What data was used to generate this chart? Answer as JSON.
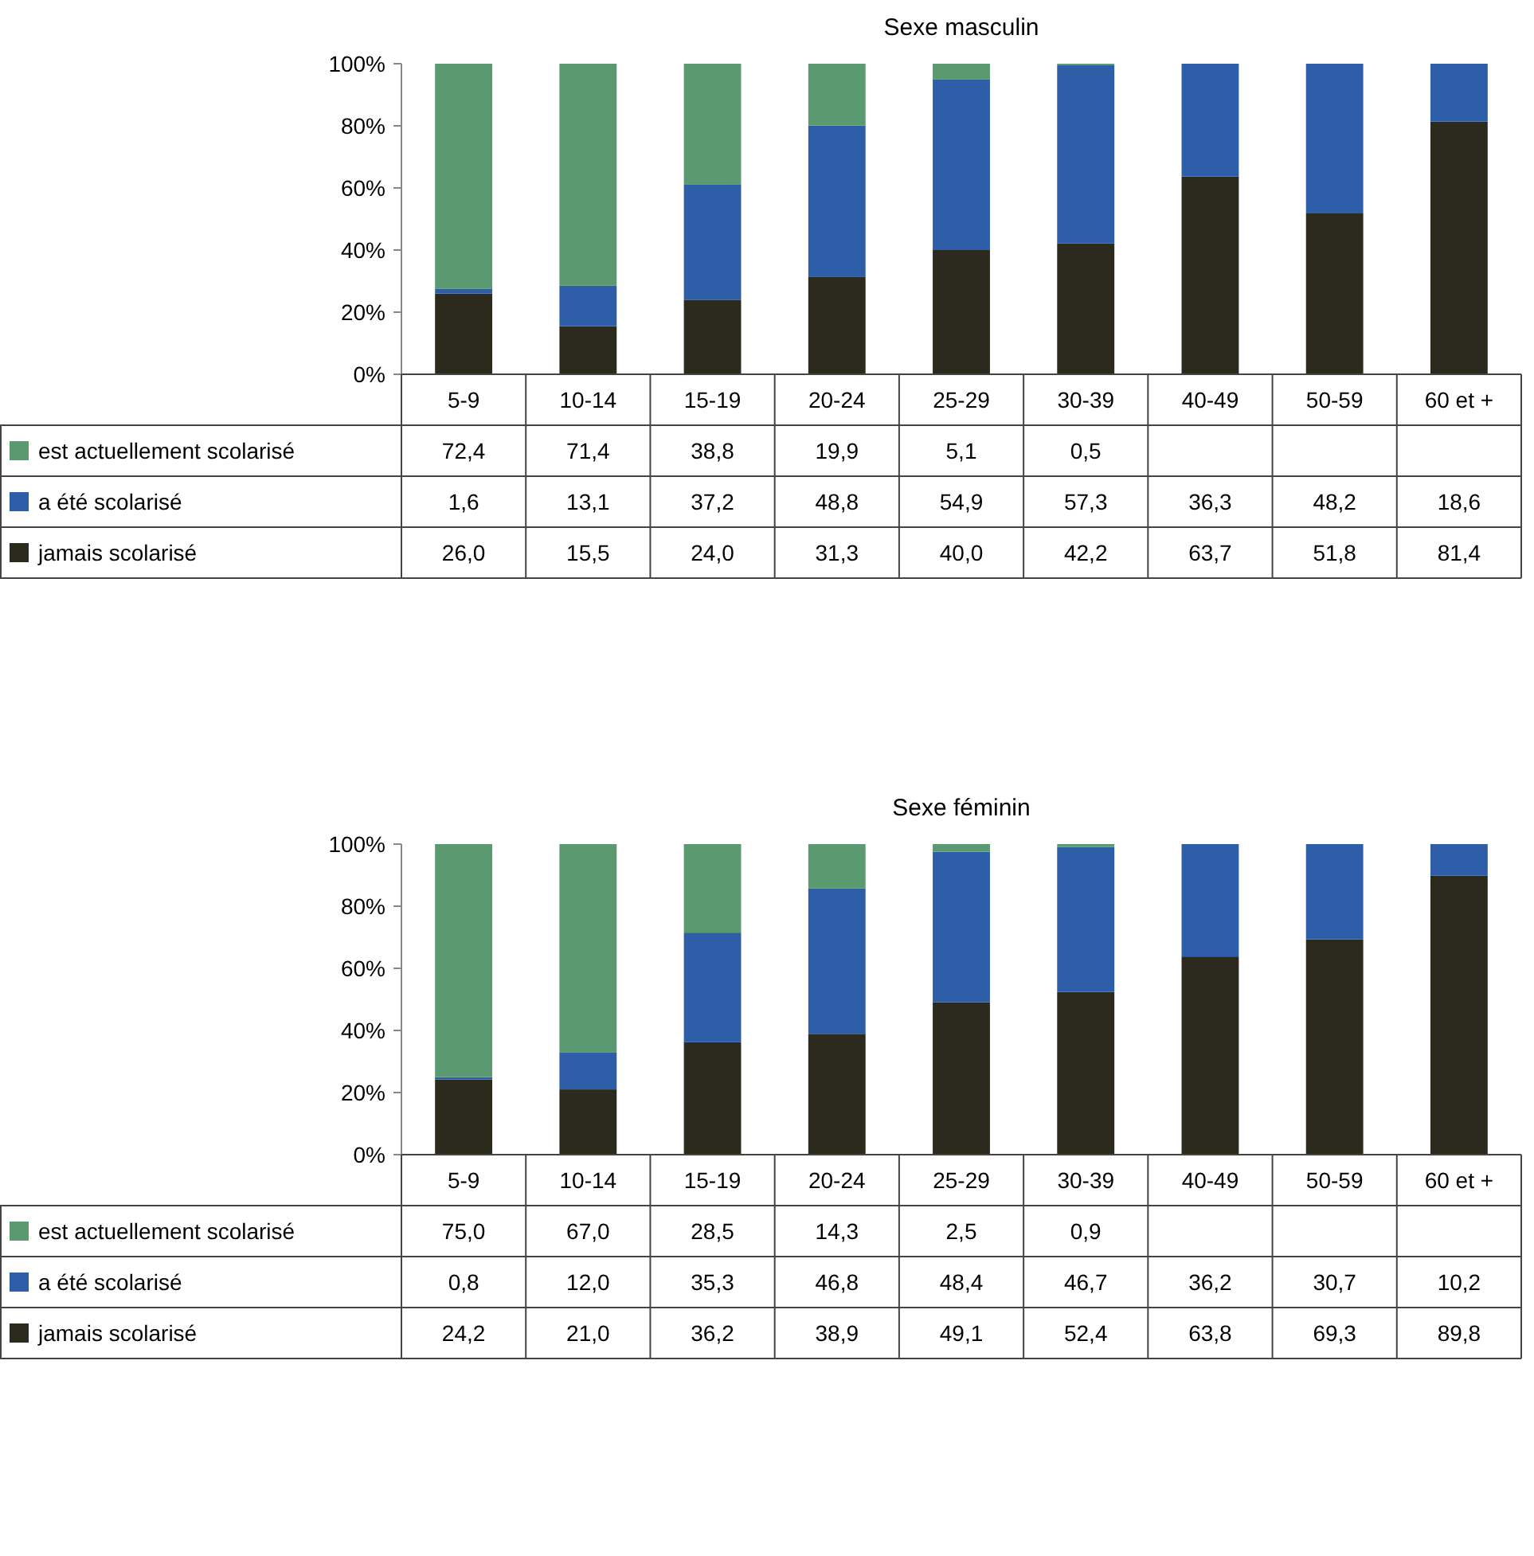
{
  "chart_data": [
    {
      "type": "bar",
      "stacked": true,
      "title": "Sexe masculin",
      "categories": [
        "5-9",
        "10-14",
        "15-19",
        "20-24",
        "25-29",
        "30-39",
        "40-49",
        "50-59",
        "60 et +"
      ],
      "ylim": [
        0,
        100
      ],
      "yticks": [
        {
          "value": 0,
          "label": "0%"
        },
        {
          "value": 20,
          "label": "20%"
        },
        {
          "value": 40,
          "label": "40%"
        },
        {
          "value": 60,
          "label": "60%"
        },
        {
          "value": 80,
          "label": "80%"
        },
        {
          "value": 100,
          "label": "100%"
        }
      ],
      "legend": "bottom",
      "series": [
        {
          "name": "jamais scolarisé",
          "color": "#2b2a1c",
          "values": [
            26.0,
            15.5,
            24.0,
            31.3,
            40.0,
            42.2,
            63.7,
            51.8,
            81.4
          ],
          "value_labels": [
            "26,0",
            "15,5",
            "24,0",
            "31,3",
            "40,0",
            "42,2",
            "63,7",
            "51,8",
            "81,4"
          ]
        },
        {
          "name": "a été scolarisé",
          "color": "#2f5ea8",
          "values": [
            1.6,
            13.1,
            37.2,
            48.8,
            54.9,
            57.3,
            36.3,
            48.2,
            18.6
          ],
          "value_labels": [
            "1,6",
            "13,1",
            "37,2",
            "48,8",
            "54,9",
            "57,3",
            "36,3",
            "48,2",
            "18,6"
          ]
        },
        {
          "name": "est actuellement scolarisé",
          "color": "#5b9a70",
          "values": [
            72.4,
            71.4,
            38.8,
            19.9,
            5.1,
            0.5,
            null,
            null,
            null
          ],
          "value_labels": [
            "72,4",
            "71,4",
            "38,8",
            "19,9",
            "5,1",
            "0,5",
            null,
            null,
            null
          ]
        }
      ]
    },
    {
      "type": "bar",
      "stacked": true,
      "title": "Sexe féminin",
      "categories": [
        "5-9",
        "10-14",
        "15-19",
        "20-24",
        "25-29",
        "30-39",
        "40-49",
        "50-59",
        "60 et +"
      ],
      "ylim": [
        0,
        100
      ],
      "yticks": [
        {
          "value": 0,
          "label": "0%"
        },
        {
          "value": 20,
          "label": "20%"
        },
        {
          "value": 40,
          "label": "40%"
        },
        {
          "value": 60,
          "label": "60%"
        },
        {
          "value": 80,
          "label": "80%"
        },
        {
          "value": 100,
          "label": "100%"
        }
      ],
      "legend": "bottom",
      "series": [
        {
          "name": "jamais scolarisé",
          "color": "#2b2a1c",
          "values": [
            24.2,
            21.0,
            36.2,
            38.9,
            49.1,
            52.4,
            63.8,
            69.3,
            89.8
          ],
          "value_labels": [
            "24,2",
            "21,0",
            "36,2",
            "38,9",
            "49,1",
            "52,4",
            "63,8",
            "69,3",
            "89,8"
          ]
        },
        {
          "name": "a été scolarisé",
          "color": "#2f5ea8",
          "values": [
            0.8,
            12.0,
            35.3,
            46.8,
            48.4,
            46.7,
            36.2,
            30.7,
            10.2
          ],
          "value_labels": [
            "0,8",
            "12,0",
            "35,3",
            "46,8",
            "48,4",
            "46,7",
            "36,2",
            "30,7",
            "10,2"
          ]
        },
        {
          "name": "est actuellement scolarisé",
          "color": "#5b9a70",
          "values": [
            75.0,
            67.0,
            28.5,
            14.3,
            2.5,
            0.9,
            null,
            null,
            null
          ],
          "value_labels": [
            "75,0",
            "67,0",
            "28,5",
            "14,3",
            "2,5",
            "0,9",
            null,
            null,
            null
          ]
        }
      ]
    }
  ]
}
